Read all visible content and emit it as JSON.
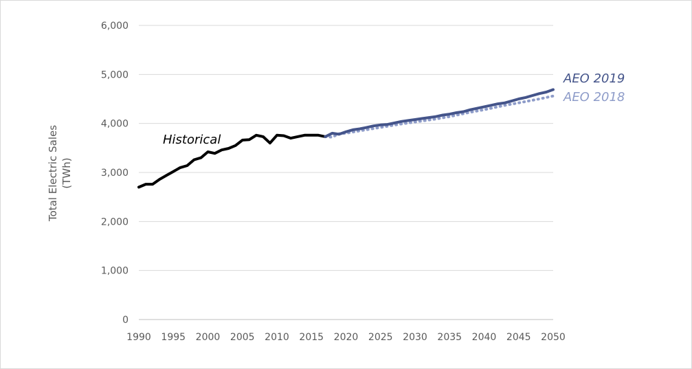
{
  "chart_data": {
    "type": "line",
    "xlim": [
      1990,
      2050
    ],
    "ylim": [
      0,
      6000
    ],
    "yticks": [
      0,
      1000,
      2000,
      3000,
      4000,
      5000,
      6000
    ],
    "ytick_labels": [
      "0",
      "1,000",
      "2,000",
      "3,000",
      "4,000",
      "5,000",
      "6,000"
    ],
    "xticks": [
      1990,
      1995,
      2000,
      2005,
      2010,
      2015,
      2020,
      2025,
      2030,
      2035,
      2040,
      2045,
      2050
    ],
    "xtick_labels": [
      "1990",
      "1995",
      "2000",
      "2005",
      "2010",
      "2015",
      "2020",
      "2025",
      "2030",
      "2035",
      "2040",
      "2045",
      "2050"
    ],
    "ylabel_line1": "Total Electric Sales",
    "ylabel_line2": "(TWh)",
    "grid": "horizontal",
    "series": [
      {
        "name": "Historical",
        "color": "#000000",
        "style": "solid",
        "x": [
          1990,
          1991,
          1992,
          1993,
          1994,
          1995,
          1996,
          1997,
          1998,
          1999,
          2000,
          2001,
          2002,
          2003,
          2004,
          2005,
          2006,
          2007,
          2008,
          2009,
          2010,
          2011,
          2012,
          2013,
          2014,
          2015,
          2016,
          2017
        ],
        "y": [
          2700,
          2760,
          2760,
          2860,
          2940,
          3020,
          3100,
          3140,
          3260,
          3300,
          3420,
          3390,
          3460,
          3490,
          3550,
          3660,
          3670,
          3760,
          3730,
          3600,
          3760,
          3750,
          3700,
          3730,
          3760,
          3760,
          3760,
          3730
        ]
      },
      {
        "name": "AEO 2018",
        "color": "#8e9cc9",
        "style": "dotted",
        "x": [
          2017,
          2018,
          2019,
          2020,
          2022,
          2025,
          2028,
          2030,
          2033,
          2035,
          2038,
          2040,
          2043,
          2045,
          2048,
          2050
        ],
        "y": [
          3730,
          3720,
          3790,
          3800,
          3850,
          3920,
          3990,
          4030,
          4090,
          4140,
          4230,
          4280,
          4370,
          4420,
          4500,
          4560
        ]
      },
      {
        "name": "AEO 2019",
        "color": "#44548a",
        "style": "solid",
        "x": [
          2017,
          2018,
          2019,
          2020,
          2021,
          2022,
          2023,
          2024,
          2025,
          2026,
          2027,
          2028,
          2029,
          2030,
          2031,
          2032,
          2033,
          2034,
          2035,
          2036,
          2037,
          2038,
          2039,
          2040,
          2041,
          2042,
          2043,
          2044,
          2045,
          2046,
          2047,
          2048,
          2049,
          2050
        ],
        "y": [
          3730,
          3800,
          3780,
          3830,
          3870,
          3890,
          3920,
          3950,
          3970,
          3980,
          4010,
          4040,
          4060,
          4080,
          4100,
          4120,
          4140,
          4170,
          4190,
          4220,
          4240,
          4280,
          4310,
          4340,
          4370,
          4400,
          4420,
          4460,
          4500,
          4530,
          4570,
          4610,
          4640,
          4690
        ]
      }
    ],
    "annotations": {
      "historical": "Historical",
      "aeo2019": "AEO 2019",
      "aeo2018": "AEO 2018"
    }
  }
}
